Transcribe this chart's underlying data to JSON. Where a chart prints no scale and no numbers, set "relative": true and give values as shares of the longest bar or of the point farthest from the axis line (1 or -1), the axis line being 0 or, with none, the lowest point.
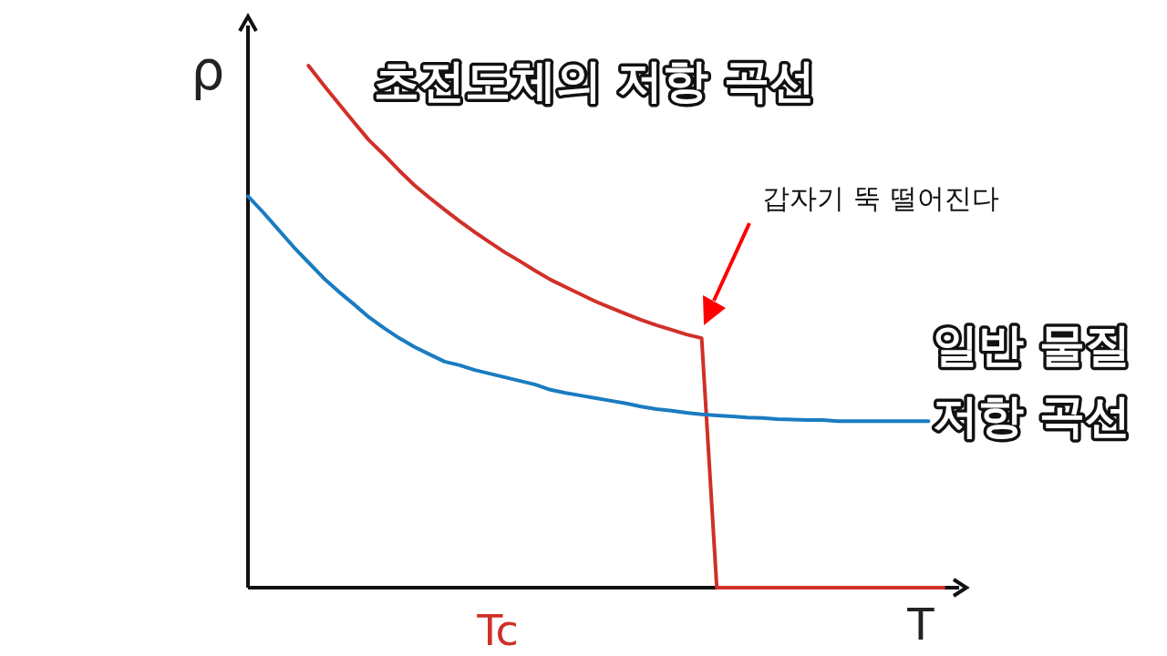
{
  "chart_data": {
    "type": "line",
    "title": "초전도체의 저항 곡선",
    "xlabel": "T",
    "ylabel": "ρ",
    "relative": true,
    "categories": [
      null,
      null,
      null,
      null,
      null,
      null,
      null,
      null,
      null,
      null,
      null,
      null,
      null,
      null,
      null,
      null,
      null,
      null,
      null,
      null,
      null,
      null,
      null,
      null,
      null,
      null,
      null,
      null,
      null,
      null,
      null,
      null,
      null,
      null,
      null,
      null,
      null,
      null,
      null,
      null,
      null,
      null,
      null,
      null,
      null,
      null,
      null
    ],
    "series": [
      {
        "color": "#d03028",
        "values": [
          null,
          null,
          null,
          null,
          1.0,
          0.963,
          0.927,
          0.892,
          0.857,
          0.829,
          0.799,
          0.771,
          0.747,
          0.724,
          0.702,
          0.681,
          0.661,
          0.642,
          0.625,
          0.607,
          0.59,
          0.576,
          0.562,
          0.548,
          0.536,
          0.524,
          0.513,
          0.503,
          0.494,
          0.485,
          0.478,
          0,
          0,
          0,
          0,
          0,
          0,
          0,
          0,
          0,
          0,
          0,
          0,
          0,
          0,
          0,
          0
        ]
      },
      {
        "name": "일반 물질 저항 곡선",
        "color": "#1a7cc0",
        "values": [
          0.75,
          0.719,
          0.686,
          0.653,
          0.623,
          0.593,
          0.567,
          0.543,
          0.518,
          0.497,
          0.478,
          0.461,
          0.447,
          0.433,
          0.426,
          0.417,
          0.41,
          0.403,
          0.396,
          0.389,
          0.379,
          0.373,
          0.368,
          0.363,
          0.358,
          0.353,
          0.347,
          0.342,
          0.339,
          0.335,
          0.332,
          0.33,
          0.328,
          0.326,
          0.325,
          0.323,
          0.322,
          0.321,
          0.321,
          0.319,
          0.319,
          0.319,
          0.319,
          0.319,
          0.319,
          0.319,
          null
        ]
      }
    ],
    "annotations": [
      "갑자기 뚝 떨어진다",
      "Tc"
    ]
  }
}
